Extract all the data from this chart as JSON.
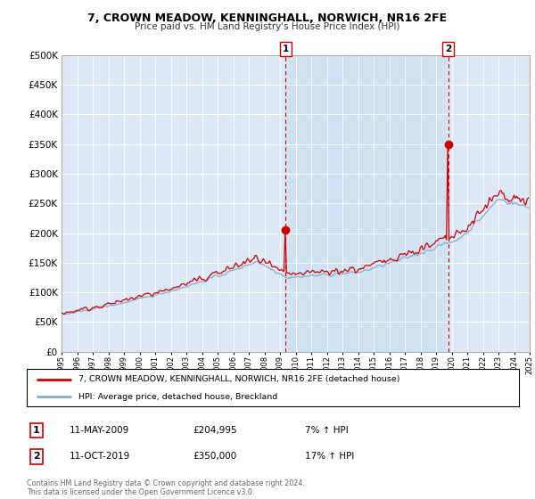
{
  "title": "7, CROWN MEADOW, KENNINGHALL, NORWICH, NR16 2FE",
  "subtitle": "Price paid vs. HM Land Registry's House Price Index (HPI)",
  "ytick_values": [
    0,
    50000,
    100000,
    150000,
    200000,
    250000,
    300000,
    350000,
    400000,
    450000,
    500000
  ],
  "ylim": [
    0,
    500000
  ],
  "plot_bg_color": "#dce8f5",
  "highlight_color": "#c8dff0",
  "red_color": "#cc0000",
  "blue_color": "#88aacc",
  "legend_label_red": "7, CROWN MEADOW, KENNINGHALL, NORWICH, NR16 2FE (detached house)",
  "legend_label_blue": "HPI: Average price, detached house, Breckland",
  "annotation1_label": "1",
  "annotation1_date": "11-MAY-2009",
  "annotation1_price": "£204,995",
  "annotation1_hpi": "7% ↑ HPI",
  "annotation2_label": "2",
  "annotation2_date": "11-OCT-2019",
  "annotation2_price": "£350,000",
  "annotation2_hpi": "17% ↑ HPI",
  "footer": "Contains HM Land Registry data © Crown copyright and database right 2024.\nThis data is licensed under the Open Government Licence v3.0.",
  "sale1_x": 2009.37,
  "sale1_y": 204995,
  "sale2_x": 2019.78,
  "sale2_y": 350000,
  "xmin": 1995,
  "xmax": 2025
}
